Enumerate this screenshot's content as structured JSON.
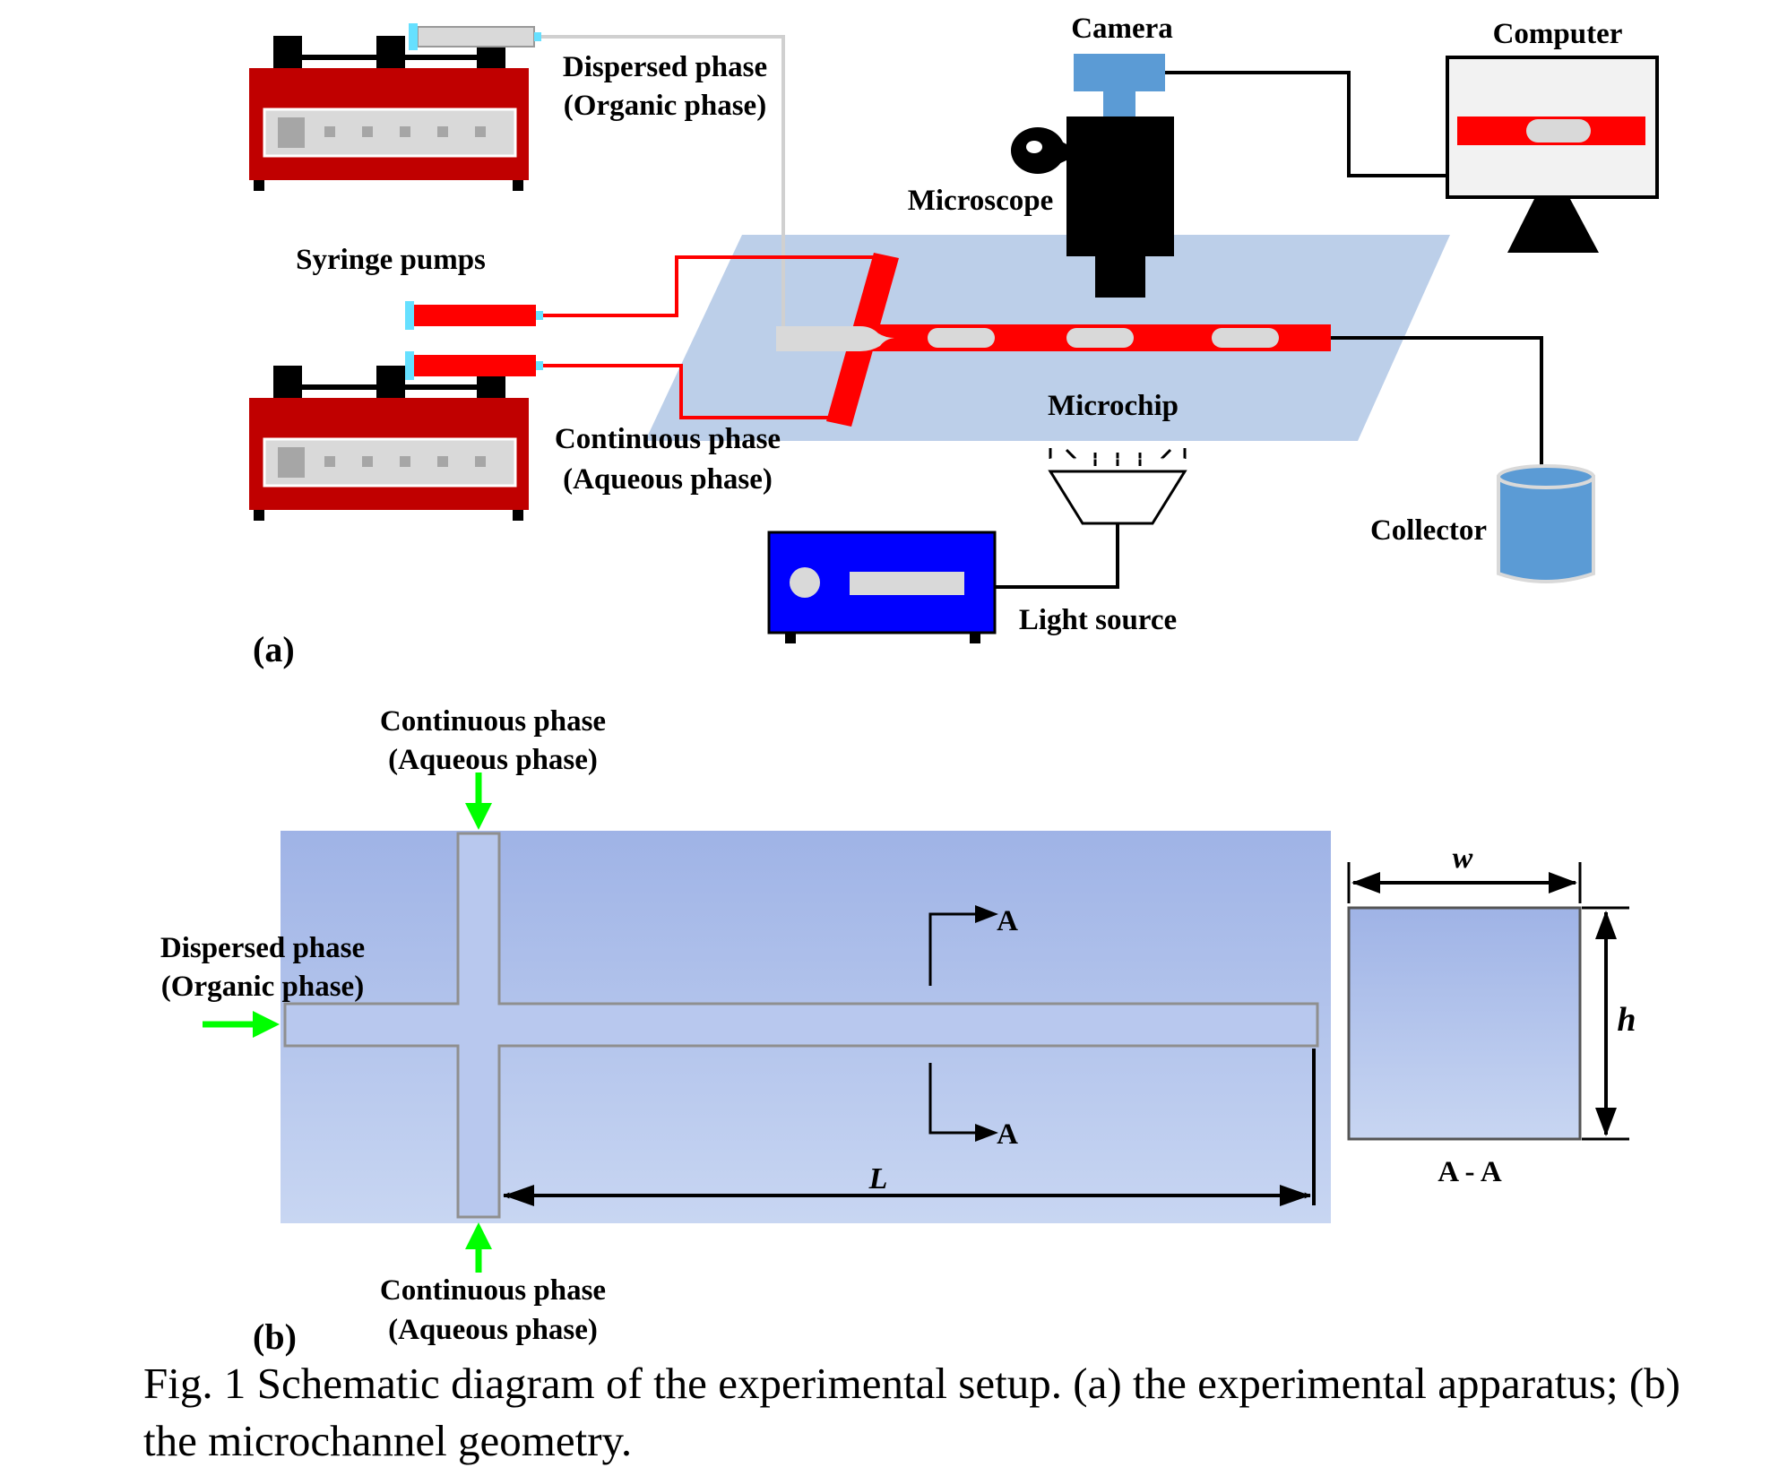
{
  "panel_a": {
    "label": "(a)",
    "dispersed_phase": "Dispersed phase",
    "dispersed_phase_sub": "(Organic phase)",
    "syringe_pumps": "Syringe pumps",
    "continuous_phase": "Continuous phase",
    "continuous_phase_sub": "(Aqueous phase)",
    "camera": "Camera",
    "computer": "Computer",
    "microscope": "Microscope",
    "microchip": "Microchip",
    "collector": "Collector",
    "light_source": "Light source"
  },
  "panel_b": {
    "label": "(b)",
    "continuous_top": "Continuous phase",
    "continuous_top_sub": "(Aqueous phase)",
    "continuous_bottom": "Continuous phase",
    "continuous_bottom_sub": "(Aqueous phase)",
    "dispersed": "Dispersed phase",
    "dispersed_sub": "(Organic phase)",
    "section_marker_top": "A",
    "section_marker_bottom": "A",
    "length_symbol": "L",
    "width_symbol": "w",
    "height_symbol": "h",
    "section_label": "A - A"
  },
  "caption": "Fig. 1 Schematic diagram of the experimental setup. (a) the experimental apparatus; (b) the microchannel geometry.",
  "colors": {
    "pump_red": "#c00000",
    "fluid_red": "#ff0000",
    "chip_blue": "#bccfe9",
    "camera_blue": "#5b9bd5",
    "light_source_blue": "#0000ff",
    "arrow_green": "#00ff00",
    "channel_top": "#9fb3e6",
    "channel_bottom": "#c8d6f2",
    "watermark_gray": "#c8c8c8"
  }
}
